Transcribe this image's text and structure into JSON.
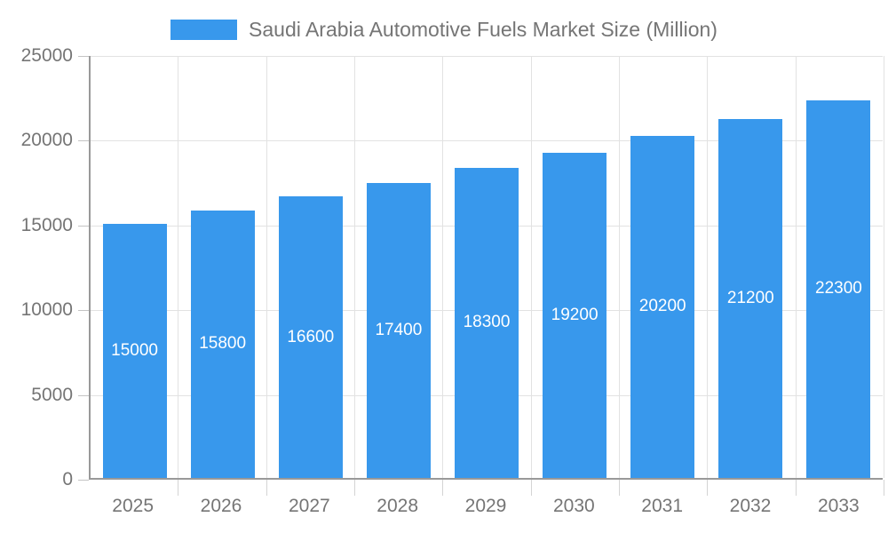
{
  "legend": {
    "label": "Saudi Arabia Automotive Fuels Market Size (Million)"
  },
  "colors": {
    "bar": "#3898ec",
    "axis_line": "#999999",
    "gridline": "#e2e2e2",
    "axis_text": "#757575",
    "bar_label_text": "#ffffff",
    "background": "#ffffff"
  },
  "chart_data": {
    "type": "bar",
    "title": "Saudi Arabia Automotive Fuels Market Size (Million)",
    "categories": [
      "2025",
      "2026",
      "2027",
      "2028",
      "2029",
      "2030",
      "2031",
      "2032",
      "2033"
    ],
    "values": [
      15000,
      15800,
      16600,
      17400,
      18300,
      19200,
      20200,
      21200,
      22300
    ],
    "series_name": "Saudi Arabia Automotive Fuels Market Size (Million)",
    "xlabel": "",
    "ylabel": "",
    "ylim": [
      0,
      25000
    ],
    "yticks": [
      0,
      5000,
      10000,
      15000,
      20000,
      25000
    ],
    "ytick_labels": [
      "0",
      "5000",
      "10000",
      "15000",
      "20000",
      "25000"
    ],
    "grid": true,
    "legend_position": "top",
    "bar_labels_visible": true
  }
}
